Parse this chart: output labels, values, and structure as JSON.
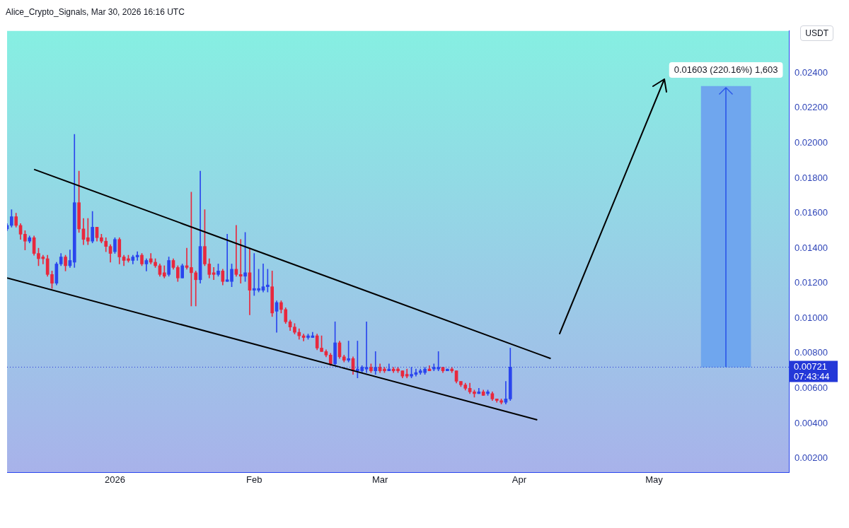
{
  "chart_data": {
    "type": "candlestick",
    "ylabel": "USDT",
    "annotations": [
      "Alice_Crypto_Signals, Mar 30, 2026 16:16 UTC",
      "07:43:44"
    ],
    "xlim": [
      "2025-12-08",
      "2026-05-31"
    ],
    "xticks": [
      {
        "value": "2026-01-01",
        "label": "2026"
      },
      {
        "value": "2026-02-01",
        "label": "Feb"
      },
      {
        "value": "2026-03-01",
        "label": "Mar"
      },
      {
        "value": "2026-04-01",
        "label": "Apr"
      },
      {
        "value": "2026-05-01",
        "label": "May"
      }
    ],
    "ylim": [
      0.0012,
      0.0264
    ],
    "yticks": [
      {
        "value": 0.002,
        "label": "0.00200"
      },
      {
        "value": 0.004,
        "label": "0.00400"
      },
      {
        "value": 0.006,
        "label": "0.00600"
      },
      {
        "value": 0.008,
        "label": "0.00800"
      },
      {
        "value": 0.01,
        "label": "0.01000"
      },
      {
        "value": 0.012,
        "label": "0.01200"
      },
      {
        "value": 0.014,
        "label": "0.01400"
      },
      {
        "value": 0.016,
        "label": "0.01600"
      },
      {
        "value": 0.018,
        "label": "0.01800"
      },
      {
        "value": 0.02,
        "label": "0.02000"
      },
      {
        "value": 0.022,
        "label": "0.02200"
      },
      {
        "value": 0.024,
        "label": "0.02400"
      }
    ],
    "legend": false,
    "ref_lines": [
      {
        "axis": "y",
        "value": 0.00721,
        "label": "0.00721",
        "color": "#2438d8",
        "line_style": "dotted"
      }
    ],
    "series": [
      {
        "x": [
          "2025-12-08",
          "2025-12-09",
          "2025-12-10",
          "2025-12-11",
          "2025-12-12",
          "2025-12-13",
          "2025-12-14",
          "2025-12-15",
          "2025-12-16",
          "2025-12-17",
          "2025-12-18",
          "2025-12-19",
          "2025-12-20",
          "2025-12-21",
          "2025-12-22",
          "2025-12-23",
          "2025-12-24",
          "2025-12-25",
          "2025-12-26",
          "2025-12-27",
          "2025-12-28",
          "2025-12-29",
          "2025-12-30",
          "2025-12-31",
          "2026-01-01",
          "2026-01-02",
          "2026-01-03",
          "2026-01-04",
          "2026-01-05",
          "2026-01-06",
          "2026-01-07",
          "2026-01-08",
          "2026-01-09",
          "2026-01-10",
          "2026-01-11",
          "2026-01-12",
          "2026-01-13",
          "2026-01-14",
          "2026-01-15",
          "2026-01-16",
          "2026-01-17",
          "2026-01-18",
          "2026-01-19",
          "2026-01-20",
          "2026-01-21",
          "2026-01-22",
          "2026-01-23",
          "2026-01-24",
          "2026-01-25",
          "2026-01-26",
          "2026-01-27",
          "2026-01-28",
          "2026-01-29",
          "2026-01-30",
          "2026-01-31",
          "2026-02-01",
          "2026-02-02",
          "2026-02-03",
          "2026-02-04",
          "2026-02-05",
          "2026-02-06",
          "2026-02-07",
          "2026-02-08",
          "2026-02-09",
          "2026-02-10",
          "2026-02-11",
          "2026-02-12",
          "2026-02-13",
          "2026-02-14",
          "2026-02-15",
          "2026-02-16",
          "2026-02-17",
          "2026-02-18",
          "2026-02-19",
          "2026-02-20",
          "2026-02-21",
          "2026-02-22",
          "2026-02-23",
          "2026-02-24",
          "2026-02-25",
          "2026-02-26",
          "2026-02-27",
          "2026-02-28",
          "2026-03-01",
          "2026-03-02",
          "2026-03-03",
          "2026-03-04",
          "2026-03-05",
          "2026-03-06",
          "2026-03-07",
          "2026-03-08",
          "2026-03-09",
          "2026-03-10",
          "2026-03-11",
          "2026-03-12",
          "2026-03-13",
          "2026-03-14",
          "2026-03-15",
          "2026-03-16",
          "2026-03-17",
          "2026-03-18",
          "2026-03-19",
          "2026-03-20",
          "2026-03-21",
          "2026-03-22",
          "2026-03-23",
          "2026-03-24",
          "2026-03-25",
          "2026-03-26",
          "2026-03-27",
          "2026-03-28",
          "2026-03-29",
          "2026-03-30"
        ],
        "ohlc": [
          [
            0.0151,
            0.0154,
            0.015,
            0.0153
          ],
          [
            0.0153,
            0.0162,
            0.0152,
            0.0158
          ],
          [
            0.0158,
            0.016,
            0.0152,
            0.0153
          ],
          [
            0.0153,
            0.0154,
            0.0145,
            0.0148
          ],
          [
            0.0148,
            0.015,
            0.0139,
            0.0144
          ],
          [
            0.0144,
            0.0147,
            0.0143,
            0.0146
          ],
          [
            0.0146,
            0.0147,
            0.0136,
            0.0137
          ],
          [
            0.0137,
            0.014,
            0.013,
            0.0134
          ],
          [
            0.0135,
            0.0136,
            0.0131,
            0.0134
          ],
          [
            0.0134,
            0.0136,
            0.0124,
            0.0125
          ],
          [
            0.0125,
            0.0127,
            0.0117,
            0.012
          ],
          [
            0.012,
            0.0132,
            0.0119,
            0.0131
          ],
          [
            0.0131,
            0.0137,
            0.013,
            0.0135
          ],
          [
            0.0135,
            0.0136,
            0.0127,
            0.013
          ],
          [
            0.013,
            0.0139,
            0.0129,
            0.0133
          ],
          [
            0.0132,
            0.0205,
            0.0129,
            0.0166
          ],
          [
            0.0166,
            0.0184,
            0.0149,
            0.0151
          ],
          [
            0.0151,
            0.0157,
            0.0142,
            0.0145
          ],
          [
            0.0146,
            0.0157,
            0.0142,
            0.0144
          ],
          [
            0.0144,
            0.0161,
            0.0143,
            0.0152
          ],
          [
            0.0152,
            0.0152,
            0.0144,
            0.0146
          ],
          [
            0.0146,
            0.0148,
            0.0143,
            0.0144
          ],
          [
            0.0144,
            0.0146,
            0.0138,
            0.0141
          ],
          [
            0.0141,
            0.0142,
            0.0132,
            0.0137
          ],
          [
            0.0138,
            0.0146,
            0.0137,
            0.0145
          ],
          [
            0.0145,
            0.0146,
            0.0131,
            0.0135
          ],
          [
            0.0135,
            0.0136,
            0.013,
            0.0133
          ],
          [
            0.0134,
            0.0136,
            0.0132,
            0.0133
          ],
          [
            0.0133,
            0.0136,
            0.0131,
            0.0135
          ],
          [
            0.0135,
            0.0138,
            0.0133,
            0.0136
          ],
          [
            0.0136,
            0.0137,
            0.013,
            0.0131
          ],
          [
            0.0131,
            0.0134,
            0.0127,
            0.0133
          ],
          [
            0.0134,
            0.0137,
            0.0131,
            0.0132
          ],
          [
            0.0132,
            0.0134,
            0.0129,
            0.013
          ],
          [
            0.013,
            0.0131,
            0.0124,
            0.0125
          ],
          [
            0.0126,
            0.013,
            0.0123,
            0.0124
          ],
          [
            0.0125,
            0.0135,
            0.0124,
            0.0133
          ],
          [
            0.0133,
            0.0134,
            0.0128,
            0.0129
          ],
          [
            0.0129,
            0.013,
            0.0121,
            0.0123
          ],
          [
            0.0123,
            0.0131,
            0.0123,
            0.013
          ],
          [
            0.013,
            0.014,
            0.0128,
            0.0129
          ],
          [
            0.0129,
            0.0172,
            0.0107,
            0.0126
          ],
          [
            0.0126,
            0.0127,
            0.0107,
            0.0122
          ],
          [
            0.0122,
            0.0184,
            0.012,
            0.0141
          ],
          [
            0.0141,
            0.0162,
            0.013,
            0.0131
          ],
          [
            0.0131,
            0.0134,
            0.0123,
            0.0125
          ],
          [
            0.0126,
            0.0129,
            0.0122,
            0.0125
          ],
          [
            0.0125,
            0.0131,
            0.0124,
            0.0127
          ],
          [
            0.0127,
            0.0128,
            0.0119,
            0.0121
          ],
          [
            0.0121,
            0.0148,
            0.0121,
            0.0122
          ],
          [
            0.0121,
            0.0131,
            0.0118,
            0.0128
          ],
          [
            0.0128,
            0.0153,
            0.0124,
            0.0125
          ],
          [
            0.0125,
            0.0145,
            0.012,
            0.0124
          ],
          [
            0.0124,
            0.0149,
            0.0121,
            0.0126
          ],
          [
            0.0126,
            0.014,
            0.0102,
            0.0116
          ],
          [
            0.0116,
            0.0137,
            0.0113,
            0.0117
          ],
          [
            0.0116,
            0.0128,
            0.0115,
            0.0117
          ],
          [
            0.0116,
            0.0131,
            0.0115,
            0.0118
          ],
          [
            0.0118,
            0.0128,
            0.0115,
            0.0119
          ],
          [
            0.0118,
            0.0127,
            0.0101,
            0.0103
          ],
          [
            0.0104,
            0.011,
            0.0092,
            0.0109
          ],
          [
            0.0109,
            0.011,
            0.0103,
            0.0105
          ],
          [
            0.0105,
            0.0106,
            0.0097,
            0.0098
          ],
          [
            0.0098,
            0.0099,
            0.0093,
            0.0095
          ],
          [
            0.0095,
            0.0097,
            0.0091,
            0.0092
          ],
          [
            0.0092,
            0.0094,
            0.0088,
            0.009
          ],
          [
            0.009,
            0.0091,
            0.0087,
            0.0089
          ],
          [
            0.0089,
            0.0091,
            0.0088,
            0.009
          ],
          [
            0.0089,
            0.0092,
            0.0089,
            0.009
          ],
          [
            0.009,
            0.0091,
            0.0082,
            0.0083
          ],
          [
            0.0083,
            0.009,
            0.0081,
            0.0081
          ],
          [
            0.0081,
            0.0082,
            0.0078,
            0.0079
          ],
          [
            0.0079,
            0.008,
            0.0073,
            0.0074
          ],
          [
            0.0074,
            0.0098,
            0.0073,
            0.0086
          ],
          [
            0.0086,
            0.0087,
            0.0077,
            0.0078
          ],
          [
            0.0078,
            0.0079,
            0.0075,
            0.0076
          ],
          [
            0.0076,
            0.0087,
            0.0075,
            0.0077
          ],
          [
            0.0077,
            0.0078,
            0.0068,
            0.007
          ],
          [
            0.007,
            0.0087,
            0.0066,
            0.0071
          ],
          [
            0.007,
            0.0073,
            0.0069,
            0.0072
          ],
          [
            0.0071,
            0.0098,
            0.0069,
            0.0072
          ],
          [
            0.0072,
            0.0074,
            0.0069,
            0.007
          ],
          [
            0.007,
            0.0081,
            0.0068,
            0.0072
          ],
          [
            0.0072,
            0.0074,
            0.0069,
            0.007
          ],
          [
            0.0071,
            0.0072,
            0.0069,
            0.007
          ],
          [
            0.007,
            0.0074,
            0.007,
            0.0071
          ],
          [
            0.0071,
            0.0072,
            0.0069,
            0.007
          ],
          [
            0.0071,
            0.0072,
            0.0069,
            0.007
          ],
          [
            0.007,
            0.007,
            0.0066,
            0.0067
          ],
          [
            0.0068,
            0.0071,
            0.0066,
            0.0067
          ],
          [
            0.0067,
            0.0072,
            0.0066,
            0.0068
          ],
          [
            0.0068,
            0.0071,
            0.0067,
            0.0069
          ],
          [
            0.0069,
            0.0071,
            0.0068,
            0.007
          ],
          [
            0.0069,
            0.0072,
            0.0068,
            0.0071
          ],
          [
            0.0071,
            0.0073,
            0.007,
            0.007
          ],
          [
            0.0071,
            0.0074,
            0.007,
            0.0072
          ],
          [
            0.0071,
            0.0081,
            0.007,
            0.0072
          ],
          [
            0.0072,
            0.0072,
            0.0069,
            0.007
          ],
          [
            0.007,
            0.0071,
            0.007,
            0.0071
          ],
          [
            0.0071,
            0.0072,
            0.0069,
            0.007
          ],
          [
            0.007,
            0.007,
            0.0063,
            0.0064
          ],
          [
            0.0064,
            0.0064,
            0.0061,
            0.0062
          ],
          [
            0.0062,
            0.0063,
            0.0059,
            0.006
          ],
          [
            0.006,
            0.0063,
            0.0057,
            0.0058
          ],
          [
            0.0058,
            0.0059,
            0.0055,
            0.0057
          ],
          [
            0.0057,
            0.006,
            0.0057,
            0.0058
          ],
          [
            0.0058,
            0.0059,
            0.0056,
            0.0056
          ],
          [
            0.0057,
            0.0059,
            0.0056,
            0.0058
          ],
          [
            0.0057,
            0.0058,
            0.0053,
            0.0054
          ],
          [
            0.0054,
            0.0054,
            0.0052,
            0.0053
          ],
          [
            0.0053,
            0.0054,
            0.0051,
            0.0052
          ],
          [
            0.0052,
            0.0064,
            0.0051,
            0.0054
          ],
          [
            0.0054,
            0.0083,
            0.0053,
            0.00721
          ]
        ],
        "colors": [
          "#2a45ee",
          "#2a45ee",
          "#e8283d",
          "#e8283d",
          "#e8283d",
          "#2a45ee",
          "#e8283d",
          "#e8283d",
          "#e8283d",
          "#e8283d",
          "#e8283d",
          "#2a45ee",
          "#2a45ee",
          "#e8283d",
          "#2a45ee",
          "#2a45ee",
          "#e8283d",
          "#e8283d",
          "#e8283d",
          "#2a45ee",
          "#e8283d",
          "#e8283d",
          "#e8283d",
          "#e8283d",
          "#2a45ee",
          "#e8283d",
          "#e8283d",
          "#e8283d",
          "#2a45ee",
          "#2a45ee",
          "#e8283d",
          "#2a45ee",
          "#e8283d",
          "#e8283d",
          "#e8283d",
          "#e8283d",
          "#2a45ee",
          "#e8283d",
          "#e8283d",
          "#2a45ee",
          "#e8283d",
          "#e8283d",
          "#e8283d",
          "#2a45ee",
          "#e8283d",
          "#e8283d",
          "#e8283d",
          "#2a45ee",
          "#e8283d",
          "#2a45ee",
          "#2a45ee",
          "#e8283d",
          "#e8283d",
          "#2a45ee",
          "#e8283d",
          "#2a45ee",
          "#2a45ee",
          "#2a45ee",
          "#2a45ee",
          "#e8283d",
          "#2a45ee",
          "#e8283d",
          "#e8283d",
          "#e8283d",
          "#e8283d",
          "#e8283d",
          "#e8283d",
          "#2a45ee",
          "#2a45ee",
          "#e8283d",
          "#e8283d",
          "#e8283d",
          "#e8283d",
          "#2a45ee",
          "#e8283d",
          "#e8283d",
          "#2a45ee",
          "#e8283d",
          "#2a45ee",
          "#2a45ee",
          "#2a45ee",
          "#e8283d",
          "#2a45ee",
          "#e8283d",
          "#e8283d",
          "#2a45ee",
          "#e8283d",
          "#e8283d",
          "#e8283d",
          "#e8283d",
          "#2a45ee",
          "#2a45ee",
          "#2a45ee",
          "#2a45ee",
          "#e8283d",
          "#2a45ee",
          "#2a45ee",
          "#e8283d",
          "#2a45ee",
          "#e8283d",
          "#e8283d",
          "#e8283d",
          "#e8283d",
          "#e8283d",
          "#e8283d",
          "#2a45ee",
          "#e8283d",
          "#2a45ee",
          "#e8283d",
          "#e8283d",
          "#e8283d",
          "#2a45ee",
          "#2a45ee"
        ]
      },
      {
        "type": "line",
        "color": "#000000",
        "x": [
          "2025-12-14",
          "2026-04-08"
        ],
        "values": [
          0.0185,
          0.0077
        ]
      },
      {
        "type": "line",
        "color": "#000000",
        "x": [
          "2025-12-08",
          "2026-04-05"
        ],
        "values": [
          0.0123,
          0.0042
        ]
      },
      {
        "type": "bar",
        "color": "#6fa6ee",
        "x": [
          "2026-05-17"
        ],
        "base": [
          0.00721
        ],
        "values": [
          0.01603
        ],
        "value_labels": [
          "0.01603 (220.16%) 1,603"
        ]
      }
    ]
  }
}
